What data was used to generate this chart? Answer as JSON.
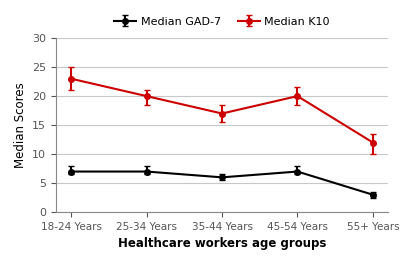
{
  "categories": [
    "18-24 Years",
    "25-34 Years",
    "35-44 Years",
    "45-54 Years",
    "55+ Years"
  ],
  "gad7_values": [
    7,
    7,
    6,
    7,
    3
  ],
  "gad7_yerr_lower": [
    0.5,
    0.5,
    0.5,
    0.5,
    0.5
  ],
  "gad7_yerr_upper": [
    1.0,
    1.0,
    0.5,
    1.0,
    0.5
  ],
  "k10_values": [
    23,
    20,
    17,
    20,
    12
  ],
  "k10_yerr_lower": [
    2.0,
    1.5,
    1.5,
    1.5,
    2.0
  ],
  "k10_yerr_upper": [
    2.0,
    1.0,
    1.5,
    1.5,
    1.5
  ],
  "gad7_color": "#000000",
  "k10_color": "#cc0000",
  "ylabel": "Median Scores",
  "xlabel": "Healthcare workers age groups",
  "ylim": [
    0,
    30
  ],
  "yticks": [
    0,
    5,
    10,
    15,
    20,
    25,
    30
  ],
  "legend_gad7": "Median GAD-7",
  "legend_k10": "Median K10",
  "background_color": "#ffffff",
  "grid_color": "#c8c8c8",
  "fig_width": 4.0,
  "fig_height": 2.72,
  "dpi": 100
}
